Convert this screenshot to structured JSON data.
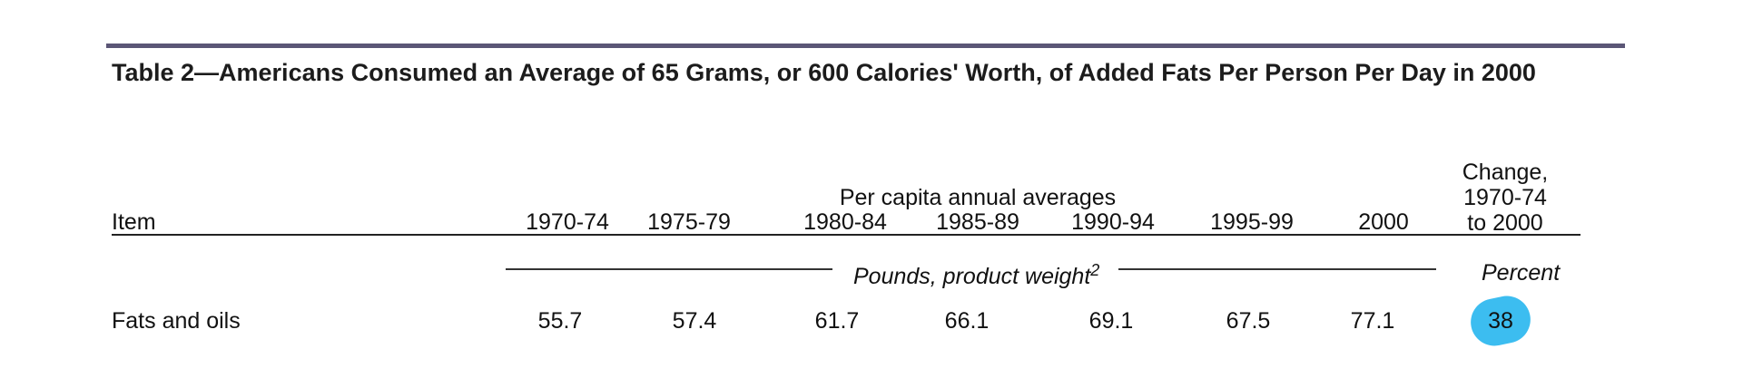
{
  "table": {
    "title": "Table 2—Americans Consumed an Average of 65 Grams, or 600 Calories' Worth, of Added Fats Per Person Per Day in 2000",
    "item_header": "Item",
    "group_header": "Per capita annual averages",
    "change_header": [
      "Change,",
      "1970-74",
      "to 2000"
    ],
    "columns": [
      "1970-74",
      "1975-79",
      "1980-84",
      "1985-89",
      "1990-94",
      "1995-99",
      "2000"
    ],
    "unit_label": "Pounds, product weight",
    "unit_footnote": "2",
    "percent_label": "Percent",
    "rows": [
      {
        "item": "Fats and oils",
        "values": [
          "55.7",
          "57.4",
          "61.7",
          "66.1",
          "69.1",
          "67.5",
          "77.1"
        ],
        "change": "38"
      }
    ],
    "highlight_color": "#3cbdf0",
    "rule_color": "#5b5676"
  }
}
